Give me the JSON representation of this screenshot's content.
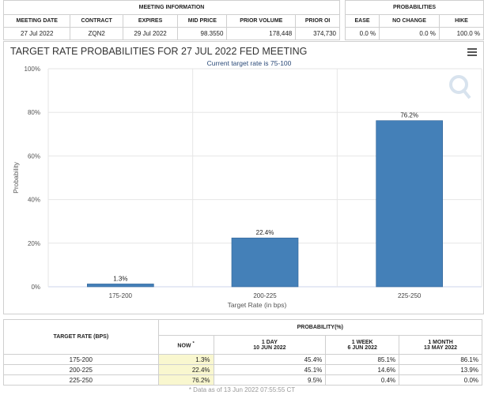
{
  "meeting_info": {
    "group_header": "MEETING INFORMATION",
    "columns": [
      "MEETING DATE",
      "CONTRACT",
      "EXPIRES",
      "MID PRICE",
      "PRIOR VOLUME",
      "PRIOR OI"
    ],
    "row": [
      "27 Jul 2022",
      "ZQN2",
      "29 Jul 2022",
      "98.3550",
      "178,448",
      "374,730"
    ]
  },
  "probabilities_info": {
    "group_header": "PROBABILITIES",
    "columns": [
      "EASE",
      "NO CHANGE",
      "HIKE"
    ],
    "row": [
      "0.0 %",
      "0.0 %",
      "100.0 %"
    ]
  },
  "chart_panel": {
    "title": "TARGET RATE PROBABILITIES FOR 27 JUL 2022 FED MEETING",
    "menu_icon": "hamburger-menu-icon",
    "watermark_icon": "q-logo-icon"
  },
  "chart_data": {
    "type": "bar",
    "subtitle": "Current target rate is 75-100",
    "categories": [
      "175-200",
      "200-225",
      "225-250"
    ],
    "values": [
      1.3,
      22.4,
      76.2
    ],
    "data_labels": [
      "1.3%",
      "22.4%",
      "76.2%"
    ],
    "xlabel": "Target Rate (in bps)",
    "ylabel": "Probability",
    "ylim": [
      0,
      100
    ],
    "yticks": [
      "0%",
      "20%",
      "40%",
      "60%",
      "80%",
      "100%"
    ],
    "grid": true,
    "bar_color": "#4480b8"
  },
  "bottom_table": {
    "target_header": "TARGET RATE (BPS)",
    "group_header": "PROBABILITY(%)",
    "columns": [
      {
        "line1": "NOW",
        "line2": "",
        "marker": "*"
      },
      {
        "line1": "1 DAY",
        "line2": "10 JUN 2022"
      },
      {
        "line1": "1 WEEK",
        "line2": "6 JUN 2022"
      },
      {
        "line1": "1 MONTH",
        "line2": "13 MAY 2022"
      }
    ],
    "rows": [
      {
        "rate": "175-200",
        "values": [
          "1.3%",
          "45.4%",
          "85.1%",
          "86.1%"
        ]
      },
      {
        "rate": "200-225",
        "values": [
          "22.4%",
          "45.1%",
          "14.6%",
          "13.9%"
        ]
      },
      {
        "rate": "225-250",
        "values": [
          "76.2%",
          "9.5%",
          "0.4%",
          "0.0%"
        ]
      }
    ],
    "now_highlight": "#f9f7cf"
  },
  "footnote": "* Data as of 13 Jun 2022 07:55:55 CT"
}
